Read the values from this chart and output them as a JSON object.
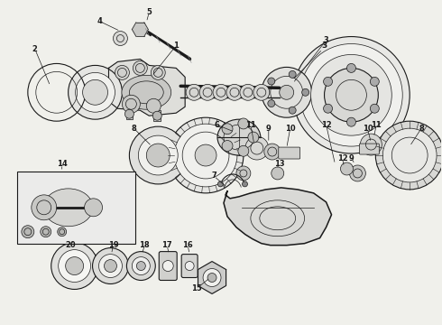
{
  "bg_color": "#f0f0eb",
  "lc": "#1a1a1a",
  "figsize": [
    4.9,
    3.6
  ],
  "dpi": 100,
  "lw_thin": 0.5,
  "lw_med": 0.8,
  "lw_thick": 1.1
}
